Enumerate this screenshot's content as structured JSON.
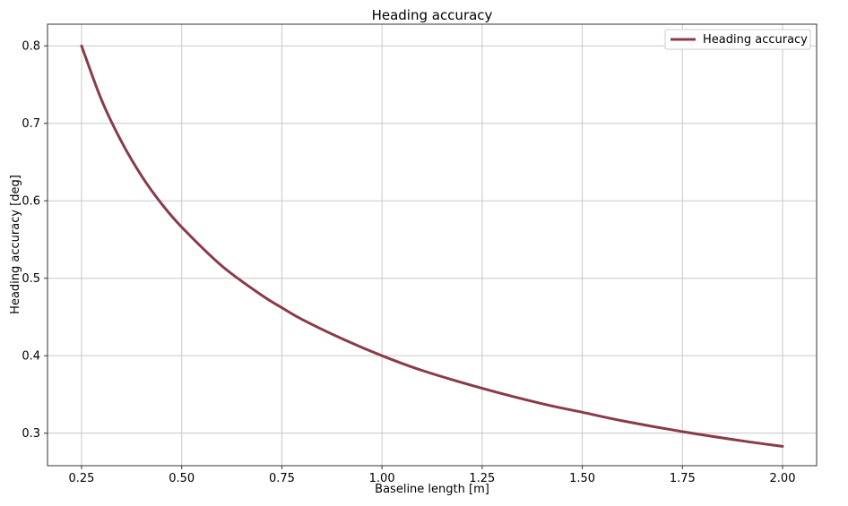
{
  "chart_data": {
    "type": "line",
    "title": "Heading accuracy",
    "xlabel": "Baseline length [m]",
    "ylabel": "Heading accuracy [deg]",
    "xlim": [
      0.165,
      2.085
    ],
    "ylim": [
      0.258,
      0.828
    ],
    "xticks": [
      0.25,
      0.5,
      0.75,
      1.0,
      1.25,
      1.5,
      1.75,
      2.0
    ],
    "xtick_labels": [
      "0.25",
      "0.50",
      "0.75",
      "1.00",
      "1.25",
      "1.50",
      "1.75",
      "2.00"
    ],
    "yticks": [
      0.3,
      0.4,
      0.5,
      0.6,
      0.7,
      0.8
    ],
    "ytick_labels": [
      "0.3",
      "0.4",
      "0.5",
      "0.6",
      "0.7",
      "0.8"
    ],
    "grid": true,
    "legend_position": "top-right",
    "series": [
      {
        "name": "Heading accuracy",
        "color": "#8b3a4a",
        "x": [
          0.25,
          0.3,
          0.35,
          0.4,
          0.45,
          0.5,
          0.6,
          0.7,
          0.75,
          0.8,
          0.9,
          1.0,
          1.1,
          1.25,
          1.4,
          1.5,
          1.6,
          1.75,
          1.9,
          2.0
        ],
        "y": [
          0.8,
          0.73,
          0.676,
          0.632,
          0.596,
          0.566,
          0.516,
          0.478,
          0.462,
          0.447,
          0.422,
          0.4,
          0.381,
          0.358,
          0.338,
          0.327,
          0.316,
          0.302,
          0.29,
          0.283
        ]
      }
    ]
  }
}
